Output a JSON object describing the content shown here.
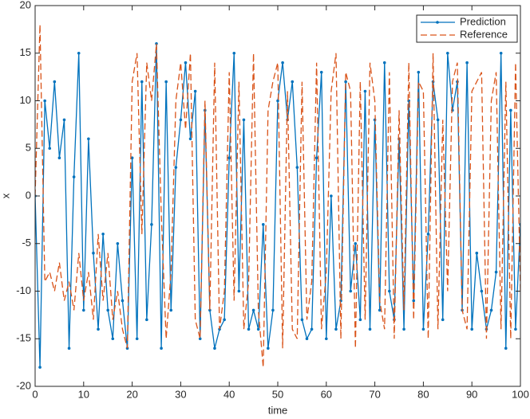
{
  "chart_data": {
    "type": "line",
    "xlabel": "time",
    "ylabel": "x",
    "x": [
      0,
      1,
      2,
      3,
      4,
      5,
      6,
      7,
      8,
      9,
      10,
      11,
      12,
      13,
      14,
      15,
      16,
      17,
      18,
      19,
      20,
      21,
      22,
      23,
      24,
      25,
      26,
      27,
      28,
      29,
      30,
      31,
      32,
      33,
      34,
      35,
      36,
      37,
      38,
      39,
      40,
      41,
      42,
      43,
      44,
      45,
      46,
      47,
      48,
      49,
      50,
      51,
      52,
      53,
      54,
      55,
      56,
      57,
      58,
      59,
      60,
      61,
      62,
      63,
      64,
      65,
      66,
      67,
      68,
      69,
      70,
      71,
      72,
      73,
      74,
      75,
      76,
      77,
      78,
      79,
      80,
      81,
      82,
      83,
      84,
      85,
      86,
      87,
      88,
      89,
      90,
      91,
      92,
      93,
      94,
      95,
      96,
      97,
      98,
      99,
      100
    ],
    "series": [
      {
        "name": "Prediction",
        "color": "#0072bd",
        "style": "solid",
        "marker": true,
        "values": [
          0,
          -18,
          10,
          5,
          12,
          4,
          8,
          -16,
          2,
          15,
          -12,
          6,
          -6,
          -14,
          -4,
          -12,
          -15,
          -5,
          -11,
          -16,
          4,
          -15,
          12,
          -13,
          -3,
          16,
          -16,
          12,
          -12,
          3,
          8,
          14,
          6,
          11,
          -15,
          9,
          -12,
          -16,
          -14,
          -13,
          4,
          15,
          -10,
          8,
          -14,
          -12,
          -14,
          -3,
          -16,
          -12,
          10,
          14,
          8,
          12,
          3,
          -13,
          -15,
          -14,
          4,
          13,
          -15,
          0,
          -14,
          -11,
          12,
          -10,
          -5,
          -13,
          11,
          -14,
          8,
          -12,
          14,
          -10,
          -13,
          6,
          -14,
          10,
          -11,
          13,
          -14,
          -4,
          12,
          8,
          -13,
          15,
          9,
          12,
          -12,
          14,
          -14,
          -6,
          -10,
          -14,
          -12,
          -8,
          15,
          -16,
          9,
          -14,
          -3
        ]
      },
      {
        "name": "Reference",
        "color": "#d95319",
        "style": "dashed",
        "marker": false,
        "values": [
          0,
          18,
          -9,
          -8,
          -10,
          -7,
          -11,
          -9,
          -12,
          -6,
          -11,
          -8,
          -13,
          -4,
          -11,
          -6,
          -13,
          -10,
          -14,
          -16,
          12,
          15,
          -4,
          14,
          10,
          16,
          -2,
          -15,
          -8,
          10,
          14,
          7,
          15,
          -13,
          -15,
          10,
          -12,
          14,
          -14,
          -10,
          13,
          -11,
          12,
          -14,
          -9,
          15,
          -12,
          -18,
          9,
          12,
          14,
          -16,
          11,
          -14,
          -15,
          12,
          -13,
          -9,
          14,
          -14,
          -8,
          11,
          15,
          -15,
          13,
          11,
          -16,
          12,
          -13,
          14,
          10,
          -11,
          -14,
          13,
          -15,
          9,
          -12,
          14,
          -13,
          12,
          11,
          -15,
          15,
          -14,
          8,
          -10,
          12,
          14,
          -12,
          -14,
          11,
          12,
          13,
          -15,
          10,
          13,
          -14,
          12,
          -15,
          14,
          -10
        ]
      }
    ],
    "xlim": [
      0,
      100
    ],
    "xticks": [
      0,
      10,
      20,
      30,
      40,
      50,
      60,
      70,
      80,
      90,
      100
    ],
    "ylim": [
      -20,
      20
    ],
    "yticks": [
      -20,
      -15,
      -10,
      -5,
      0,
      5,
      10,
      15,
      20
    ],
    "grid": false,
    "legend": "northeast"
  }
}
